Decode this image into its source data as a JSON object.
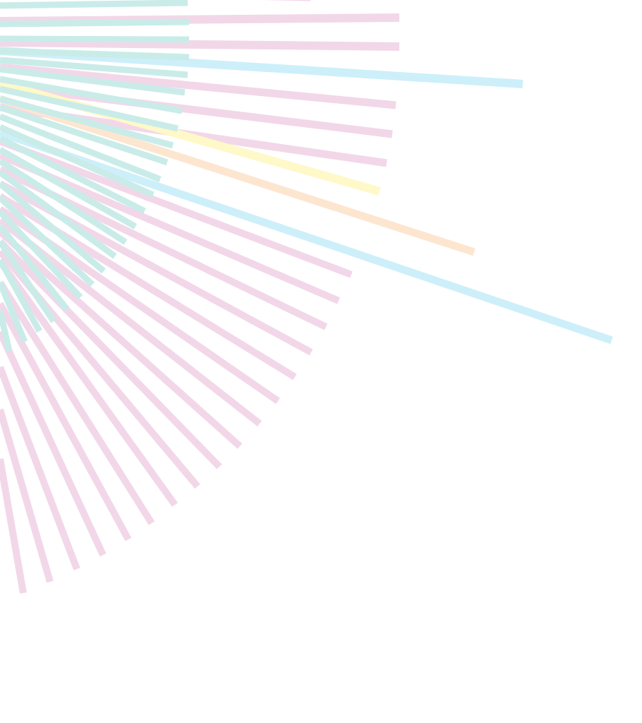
{
  "artwork": {
    "background_color": "#ffffff",
    "palette": {
      "pink": "#f2d7e9",
      "teal": "#c9ece9",
      "sky": "#cdeffa",
      "yellow": "#fff8c8",
      "peach": "#fde6cf"
    }
  }
}
